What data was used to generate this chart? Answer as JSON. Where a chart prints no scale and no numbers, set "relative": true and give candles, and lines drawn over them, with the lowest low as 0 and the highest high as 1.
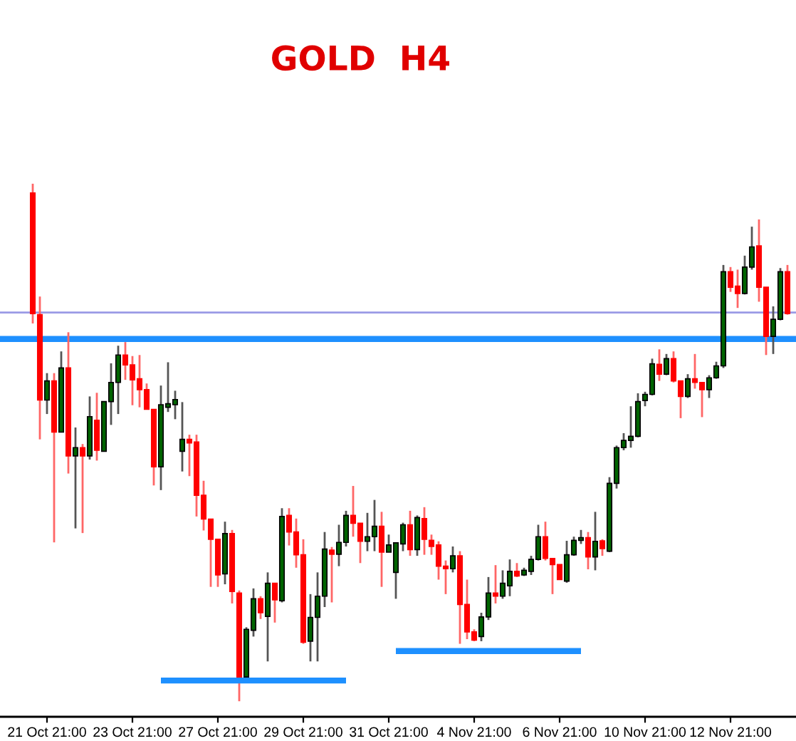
{
  "chart_data": {
    "type": "candlestick",
    "title": "GOLD  H4",
    "relative": true,
    "categories": [
      null,
      null,
      "21 Oct 21:00",
      null,
      null,
      null,
      null,
      null,
      null,
      null,
      null,
      null,
      null,
      null,
      "23 Oct 21:00",
      null,
      null,
      null,
      null,
      null,
      null,
      null,
      null,
      null,
      null,
      null,
      "27 Oct 21:00",
      null,
      null,
      null,
      null,
      null,
      null,
      null,
      null,
      null,
      null,
      null,
      "29 Oct 21:00",
      null,
      null,
      null,
      null,
      null,
      null,
      null,
      null,
      null,
      null,
      null,
      "31 Oct 21:00",
      null,
      null,
      null,
      null,
      null,
      null,
      null,
      null,
      null,
      null,
      null,
      "4 Nov 21:00",
      null,
      null,
      null,
      null,
      null,
      null,
      null,
      null,
      null,
      null,
      null,
      "6 Nov 21:00",
      null,
      null,
      null,
      null,
      null,
      null,
      null,
      null,
      null,
      null,
      null,
      "10 Nov 21:00",
      null,
      null,
      null,
      null,
      null,
      null,
      null,
      null,
      null,
      null,
      null,
      "12 Nov 21:00",
      null,
      null,
      null,
      null,
      null,
      null,
      null,
      null
    ],
    "ohlc": [
      [
        0.982,
        1.0,
        0.73,
        0.749
      ],
      [
        0.747,
        0.782,
        0.506,
        0.582
      ],
      [
        0.582,
        0.634,
        0.555,
        0.619
      ],
      [
        0.619,
        0.634,
        0.307,
        0.52
      ],
      [
        0.52,
        0.676,
        0.52,
        0.644
      ],
      [
        0.644,
        0.713,
        0.44,
        0.474
      ],
      [
        0.474,
        0.529,
        0.334,
        0.49
      ],
      [
        0.49,
        0.497,
        0.325,
        0.474
      ],
      [
        0.474,
        0.589,
        0.467,
        0.55
      ],
      [
        0.543,
        0.596,
        0.465,
        0.485
      ],
      [
        0.483,
        0.579,
        0.483,
        0.579
      ],
      [
        0.579,
        0.653,
        0.534,
        0.616
      ],
      [
        0.616,
        0.687,
        0.555,
        0.669
      ],
      [
        0.669,
        0.694,
        0.621,
        0.65
      ],
      [
        0.65,
        0.667,
        0.572,
        0.621
      ],
      [
        0.623,
        0.669,
        0.568,
        0.602
      ],
      [
        0.602,
        0.614,
        0.564,
        0.564
      ],
      [
        0.564,
        0.564,
        0.417,
        0.453
      ],
      [
        0.453,
        0.61,
        0.408,
        0.573
      ],
      [
        0.568,
        0.655,
        0.559,
        0.575
      ],
      [
        0.573,
        0.6,
        0.545,
        0.583
      ],
      [
        0.483,
        0.578,
        0.444,
        0.506
      ],
      [
        0.506,
        0.515,
        0.435,
        0.499
      ],
      [
        0.501,
        0.515,
        0.357,
        0.398
      ],
      [
        0.398,
        0.426,
        0.33,
        0.352
      ],
      [
        0.352,
        0.352,
        0.221,
        0.313
      ],
      [
        0.313,
        0.313,
        0.221,
        0.244
      ],
      [
        0.246,
        0.347,
        0.226,
        0.324
      ],
      [
        0.324,
        0.331,
        0.189,
        0.212
      ],
      [
        0.209,
        0.214,
        0.0,
        0.047
      ],
      [
        0.047,
        0.143,
        0.044,
        0.139
      ],
      [
        0.137,
        0.218,
        0.125,
        0.198
      ],
      [
        0.198,
        0.203,
        0.159,
        0.171
      ],
      [
        0.164,
        0.249,
        0.077,
        0.228
      ],
      [
        0.228,
        0.228,
        0.152,
        0.196
      ],
      [
        0.194,
        0.373,
        0.191,
        0.357
      ],
      [
        0.359,
        0.373,
        0.301,
        0.327
      ],
      [
        0.327,
        0.353,
        0.258,
        0.283
      ],
      [
        0.283,
        0.313,
        0.111,
        0.114
      ],
      [
        0.116,
        0.207,
        0.077,
        0.162
      ],
      [
        0.162,
        0.249,
        0.077,
        0.203
      ],
      [
        0.203,
        0.327,
        0.182,
        0.294
      ],
      [
        0.292,
        0.298,
        0.191,
        0.284
      ],
      [
        0.284,
        0.341,
        0.261,
        0.307
      ],
      [
        0.307,
        0.368,
        0.299,
        0.359
      ],
      [
        0.359,
        0.416,
        0.318,
        0.344
      ],
      [
        0.344,
        0.344,
        0.267,
        0.309
      ],
      [
        0.309,
        0.364,
        0.29,
        0.318
      ],
      [
        0.318,
        0.389,
        0.29,
        0.338
      ],
      [
        0.338,
        0.366,
        0.221,
        0.288
      ],
      [
        0.288,
        0.322,
        0.288,
        0.302
      ],
      [
        0.249,
        0.306,
        0.198,
        0.306
      ],
      [
        0.304,
        0.345,
        0.29,
        0.341
      ],
      [
        0.341,
        0.368,
        0.281,
        0.293
      ],
      [
        0.293,
        0.359,
        0.281,
        0.355
      ],
      [
        0.353,
        0.375,
        0.283,
        0.313
      ],
      [
        0.311,
        0.322,
        0.283,
        0.299
      ],
      [
        0.302,
        0.309,
        0.235,
        0.261
      ],
      [
        0.261,
        0.272,
        0.207,
        0.256
      ],
      [
        0.256,
        0.299,
        0.249,
        0.281
      ],
      [
        0.281,
        0.29,
        0.111,
        0.187
      ],
      [
        0.187,
        0.235,
        0.12,
        0.134
      ],
      [
        0.134,
        0.139,
        0.116,
        0.118
      ],
      [
        0.125,
        0.171,
        0.116,
        0.163
      ],
      [
        0.163,
        0.24,
        0.157,
        0.209
      ],
      [
        0.209,
        0.263,
        0.189,
        0.203
      ],
      [
        0.203,
        0.253,
        0.198,
        0.228
      ],
      [
        0.223,
        0.274,
        0.203,
        0.251
      ],
      [
        0.251,
        0.267,
        0.24,
        0.242
      ],
      [
        0.244,
        0.258,
        0.242,
        0.253
      ],
      [
        0.251,
        0.281,
        0.244,
        0.274
      ],
      [
        0.274,
        0.341,
        0.272,
        0.318
      ],
      [
        0.318,
        0.347,
        0.272,
        0.276
      ],
      [
        0.276,
        0.276,
        0.207,
        0.264
      ],
      [
        0.264,
        0.264,
        0.235,
        0.235
      ],
      [
        0.232,
        0.31,
        0.229,
        0.283
      ],
      [
        0.283,
        0.318,
        0.281,
        0.311
      ],
      [
        0.311,
        0.331,
        0.304,
        0.316
      ],
      [
        0.316,
        0.327,
        0.255,
        0.279
      ],
      [
        0.279,
        0.366,
        0.253,
        0.309
      ],
      [
        0.31,
        0.313,
        0.281,
        0.295
      ],
      [
        0.29,
        0.433,
        0.288,
        0.421
      ],
      [
        0.421,
        0.494,
        0.411,
        0.49
      ],
      [
        0.49,
        0.518,
        0.485,
        0.504
      ],
      [
        0.504,
        0.57,
        0.49,
        0.512
      ],
      [
        0.512,
        0.595,
        0.51,
        0.579
      ],
      [
        0.581,
        0.598,
        0.57,
        0.593
      ],
      [
        0.593,
        0.662,
        0.591,
        0.652
      ],
      [
        0.651,
        0.68,
        0.619,
        0.632
      ],
      [
        0.632,
        0.671,
        0.63,
        0.662
      ],
      [
        0.662,
        0.676,
        0.616,
        0.619
      ],
      [
        0.619,
        0.619,
        0.547,
        0.589
      ],
      [
        0.589,
        0.632,
        0.586,
        0.623
      ],
      [
        0.623,
        0.671,
        0.604,
        0.616
      ],
      [
        0.616,
        0.616,
        0.549,
        0.602
      ],
      [
        0.602,
        0.63,
        0.586,
        0.625
      ],
      [
        0.625,
        0.656,
        0.623,
        0.648
      ],
      [
        0.648,
        0.843,
        0.644,
        0.83
      ],
      [
        0.83,
        0.839,
        0.791,
        0.8
      ],
      [
        0.802,
        0.834,
        0.76,
        0.788
      ],
      [
        0.788,
        0.861,
        0.786,
        0.839
      ],
      [
        0.839,
        0.917,
        0.834,
        0.878
      ],
      [
        0.88,
        0.931,
        0.772,
        0.8
      ],
      [
        0.8,
        0.8,
        0.669,
        0.705
      ],
      [
        0.705,
        0.763,
        0.671,
        0.738
      ],
      [
        0.738,
        0.837,
        0.736,
        0.83
      ],
      [
        0.83,
        0.843,
        0.747,
        0.749
      ]
    ],
    "series": [
      {
        "type": "line",
        "color": "#1e90ff",
        "values": [
          null,
          null,
          null,
          null,
          null,
          null,
          null,
          null,
          null,
          null,
          null,
          null,
          null,
          null,
          null,
          null,
          null,
          null,
          0.04,
          0.04,
          0.04,
          0.04,
          0.04,
          0.04,
          0.04,
          0.04,
          0.04,
          0.04,
          0.04,
          0.04,
          0.04,
          0.04,
          0.04,
          0.04,
          0.04,
          0.04,
          0.04,
          0.04,
          0.04,
          0.04,
          0.04,
          0.04,
          0.04,
          0.04,
          0.04,
          null,
          null,
          null,
          null,
          null,
          null,
          null,
          null,
          null,
          null,
          null,
          null,
          null,
          null,
          null,
          null,
          null,
          null,
          null,
          null,
          null,
          null,
          null,
          null,
          null,
          null,
          null,
          null,
          null,
          null,
          null,
          null,
          null,
          null,
          null,
          null,
          null,
          null,
          null,
          null,
          null,
          null,
          null,
          null,
          null,
          null,
          null,
          null,
          null,
          null,
          null,
          null,
          null,
          null,
          null,
          null,
          null,
          null,
          null,
          null,
          null,
          null
        ]
      },
      {
        "type": "line",
        "color": "#1e90ff",
        "values": [
          null,
          null,
          null,
          null,
          null,
          null,
          null,
          null,
          null,
          null,
          null,
          null,
          null,
          null,
          null,
          null,
          null,
          null,
          null,
          null,
          null,
          null,
          null,
          null,
          null,
          null,
          null,
          null,
          null,
          null,
          null,
          null,
          null,
          null,
          null,
          null,
          null,
          null,
          null,
          null,
          null,
          null,
          null,
          null,
          null,
          null,
          null,
          null,
          null,
          null,
          null,
          0.097,
          0.097,
          0.097,
          0.097,
          0.097,
          0.097,
          0.097,
          0.097,
          0.097,
          0.097,
          0.097,
          0.097,
          0.097,
          0.097,
          0.097,
          0.097,
          0.097,
          0.097,
          0.097,
          0.097,
          0.097,
          0.097,
          0.097,
          0.097,
          0.097,
          0.097,
          0.097,
          null,
          null,
          null,
          null,
          null,
          null,
          null,
          null,
          null,
          null,
          null,
          null,
          null,
          null,
          null,
          null,
          null,
          null,
          null,
          null,
          null,
          null,
          null,
          null,
          null,
          null,
          null,
          null,
          null
        ]
      }
    ],
    "ref_lines": [
      {
        "axis": "y",
        "value": 0.751,
        "color": "#9a9ae6"
      },
      {
        "axis": "y",
        "value": 0.7,
        "color": "#1e90ff"
      }
    ]
  }
}
